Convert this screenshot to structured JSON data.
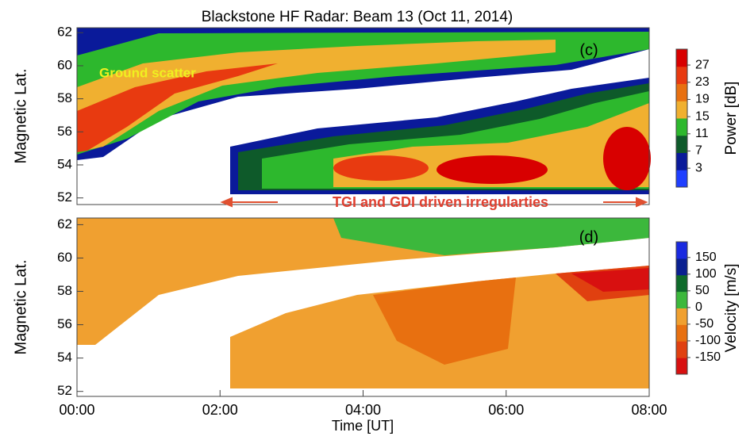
{
  "chart_data": [
    {
      "type": "heatmap",
      "title": "Blackstone HF Radar: Beam 13 (Oct 11, 2014)",
      "panel_label": "(c)",
      "y_label": "Magnetic Lat.",
      "ylim": [
        51.6,
        62.3
      ],
      "yticks": [
        52,
        54,
        56,
        58,
        60,
        62
      ],
      "xlim": [
        0,
        8
      ],
      "annotations": [
        "Ground scatter",
        "TGI and GDI driven irregularties"
      ],
      "colorbar": {
        "label": "Power [dB]",
        "lim": [
          -1.4,
          30.7
        ],
        "ticks": [
          3,
          7,
          11,
          15,
          19,
          23,
          27
        ],
        "colors": [
          "#1f3fff",
          "#0a1a9a",
          "#0e5a2a",
          "#2db82d",
          "#f0b030",
          "#e87010",
          "#e83a10",
          "#d80000"
        ]
      }
    },
    {
      "type": "heatmap",
      "panel_label": "(d)",
      "y_label": "Magnetic Lat.",
      "x_label": "Time [UT]",
      "ylim": [
        51.7,
        62.4
      ],
      "yticks": [
        52,
        54,
        56,
        58,
        60,
        62
      ],
      "xlim": [
        0,
        8
      ],
      "xticks": [
        {
          "value": 0,
          "label": "00:00"
        },
        {
          "value": 2,
          "label": "02:00"
        },
        {
          "value": 4,
          "label": "04:00"
        },
        {
          "value": 6,
          "label": "06:00"
        },
        {
          "value": 8,
          "label": "08:00"
        }
      ],
      "colorbar": {
        "label": "Velocity [m/s]",
        "lim": [
          -200,
          197
        ],
        "ticks": [
          -150,
          -100,
          -50,
          0,
          50,
          100,
          150
        ],
        "colors": [
          "#d81010",
          "#e04010",
          "#e87010",
          "#f0a030",
          "#3cb83c",
          "#0e6a2a",
          "#0a2090",
          "#1a2ae0"
        ]
      }
    }
  ]
}
